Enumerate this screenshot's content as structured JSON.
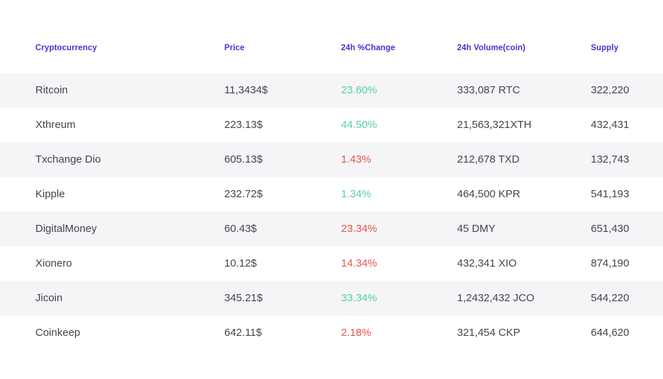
{
  "colors": {
    "header": "#4b2fd0",
    "positive": "#54d0a0",
    "negative": "#e0564f",
    "body_text": "#3f454e",
    "stripe": "#f5f5f7"
  },
  "table": {
    "columns": [
      {
        "label": "Cryptocurrency"
      },
      {
        "label": "Price"
      },
      {
        "label": "24h %Change"
      },
      {
        "label": "24h Volume(coin)"
      },
      {
        "label": "Supply"
      }
    ],
    "rows": [
      {
        "name": "Ritcoin",
        "price": "11,3434$",
        "change": "23.60%",
        "change_dir": "up",
        "volume": "333,087 RTC",
        "supply": "322,220"
      },
      {
        "name": "Xthreum",
        "price": "223.13$",
        "change": "44.50%",
        "change_dir": "up",
        "volume": "21,563,321XTH",
        "supply": "432,431"
      },
      {
        "name": "Txchange Dio",
        "price": "605.13$",
        "change": "1.43%",
        "change_dir": "down",
        "volume": "212,678 TXD",
        "supply": "132,743"
      },
      {
        "name": "Kipple",
        "price": "232.72$",
        "change": "1.34%",
        "change_dir": "up",
        "volume": "464,500 KPR",
        "supply": "541,193"
      },
      {
        "name": "DigitalMoney",
        "price": "60.43$",
        "change": "23.34%",
        "change_dir": "down",
        "volume": "45 DMY",
        "supply": "651,430"
      },
      {
        "name": "Xionero",
        "price": "10.12$",
        "change": "14.34%",
        "change_dir": "down",
        "volume": "432,341 XIO",
        "supply": "874,190"
      },
      {
        "name": "Jicoin",
        "price": "345.21$",
        "change": "33.34%",
        "change_dir": "up",
        "volume": "1,2432,432 JCO",
        "supply": "544,220"
      },
      {
        "name": "Coinkeep",
        "price": "642.11$",
        "change": "2.18%",
        "change_dir": "down",
        "volume": "321,454 CKP",
        "supply": "644,620"
      }
    ]
  }
}
